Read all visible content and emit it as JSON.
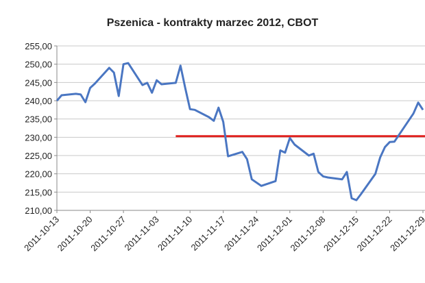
{
  "chart_data": {
    "type": "line",
    "title": "Pszenica - kontrakty marzec 2012, CBOT",
    "x": [
      "2011-10-13",
      "2011-10-14",
      "2011-10-17",
      "2011-10-18",
      "2011-10-19",
      "2011-10-20",
      "2011-10-21",
      "2011-10-24",
      "2011-10-25",
      "2011-10-26",
      "2011-10-27",
      "2011-10-28",
      "2011-10-31",
      "2011-11-01",
      "2011-11-02",
      "2011-11-03",
      "2011-11-04",
      "2011-11-07",
      "2011-11-08",
      "2011-11-09",
      "2011-11-10",
      "2011-11-11",
      "2011-11-14",
      "2011-11-15",
      "2011-11-16",
      "2011-11-17",
      "2011-11-18",
      "2011-11-21",
      "2011-11-22",
      "2011-11-23",
      "2011-11-25",
      "2011-11-28",
      "2011-11-29",
      "2011-11-30",
      "2011-12-01",
      "2011-12-02",
      "2011-12-05",
      "2011-12-06",
      "2011-12-07",
      "2011-12-08",
      "2011-12-09",
      "2011-12-12",
      "2011-12-13",
      "2011-12-14",
      "2011-12-15",
      "2011-12-16",
      "2011-12-19",
      "2011-12-20",
      "2011-12-21",
      "2011-12-22",
      "2011-12-23",
      "2011-12-27",
      "2011-12-28",
      "2011-12-29"
    ],
    "values": [
      240.0,
      241.5,
      241.9,
      241.7,
      239.6,
      243.5,
      244.7,
      249.0,
      247.7,
      241.3,
      250.0,
      250.3,
      244.3,
      244.9,
      242.2,
      245.6,
      244.5,
      244.9,
      249.6,
      243.5,
      237.7,
      237.5,
      235.5,
      234.5,
      238.1,
      234.2,
      224.8,
      226.0,
      224.0,
      218.5,
      216.7,
      218.0,
      226.4,
      225.8,
      229.8,
      228.0,
      225.0,
      225.5,
      220.5,
      219.3,
      219.0,
      218.5,
      220.5,
      213.3,
      212.8,
      214.5,
      220.0,
      224.5,
      227.3,
      228.7,
      228.8,
      236.5,
      239.5,
      237.5
    ],
    "color": "#4a76c2",
    "xlim": [
      "2011-10-13",
      "2011-12-29"
    ],
    "xticks": [
      "2011-10-13",
      "2011-10-20",
      "2011-10-27",
      "2011-11-03",
      "2011-11-10",
      "2011-11-17",
      "2011-11-24",
      "2011-12-01",
      "2011-12-08",
      "2011-12-15",
      "2011-12-22",
      "2011-12-29"
    ],
    "ylim": [
      210,
      255
    ],
    "yticks": [
      {
        "value": 210,
        "label": "210,00"
      },
      {
        "value": 215,
        "label": "215,00"
      },
      {
        "value": 220,
        "label": "220,00"
      },
      {
        "value": 225,
        "label": "225,00"
      },
      {
        "value": 230,
        "label": "230,00"
      },
      {
        "value": 235,
        "label": "235,00"
      },
      {
        "value": 240,
        "label": "240,00"
      },
      {
        "value": 245,
        "label": "245,00"
      },
      {
        "value": 250,
        "label": "250,00"
      },
      {
        "value": 255,
        "label": "255,00"
      }
    ],
    "grid": true,
    "reference_line": {
      "value": 230.3,
      "start": "2011-11-07",
      "color": "#e0201e"
    }
  }
}
